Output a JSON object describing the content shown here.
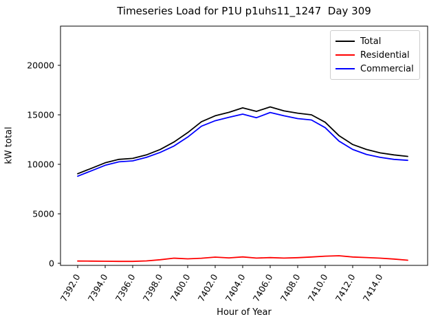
{
  "chart_data": {
    "type": "line",
    "title": "Timeseries Load for P1U p1uhs11_1247  Day 309",
    "xlabel": "Hour of Year",
    "ylabel": "kW total",
    "xlim": [
      7390.75,
      7417.45
    ],
    "ylim": [
      -210,
      23960
    ],
    "grid": false,
    "legend_position": "upper right",
    "x_ticks": [
      7392,
      7394,
      7396,
      7398,
      7400,
      7402,
      7404,
      7406,
      7408,
      7410,
      7412,
      7414
    ],
    "x_tick_labels": [
      "7392.0",
      "7394.0",
      "7396.0",
      "7398.0",
      "7400.0",
      "7402.0",
      "7404.0",
      "7406.0",
      "7408.0",
      "7410.0",
      "7412.0",
      "7414.0"
    ],
    "y_ticks": [
      0,
      5000,
      10000,
      15000,
      20000
    ],
    "y_tick_labels": [
      "0",
      "5000",
      "10000",
      "15000",
      "20000"
    ],
    "x": [
      7392,
      7393,
      7394,
      7395,
      7396,
      7397,
      7398,
      7399,
      7400,
      7401,
      7402,
      7403,
      7404,
      7405,
      7406,
      7407,
      7408,
      7409,
      7410,
      7411,
      7412,
      7413,
      7414,
      7415,
      7416
    ],
    "series": [
      {
        "name": "Total",
        "color": "#000000",
        "values": [
          9050,
          9600,
          10150,
          10500,
          10600,
          10950,
          11500,
          12250,
          13200,
          14300,
          14900,
          15250,
          15700,
          15350,
          15800,
          15400,
          15170,
          15000,
          14250,
          12900,
          12000,
          11500,
          11150,
          10950,
          10800
        ]
      },
      {
        "name": "Residential",
        "color": "#ff0000",
        "values": [
          230,
          220,
          210,
          195,
          195,
          240,
          360,
          520,
          450,
          510,
          620,
          545,
          645,
          525,
          575,
          525,
          565,
          635,
          720,
          760,
          640,
          580,
          520,
          430,
          310
        ]
      },
      {
        "name": "Commercial",
        "color": "#0000ff",
        "values": [
          8800,
          9350,
          9900,
          10250,
          10350,
          10700,
          11200,
          11850,
          12750,
          13850,
          14400,
          14750,
          15070,
          14710,
          15240,
          14900,
          14620,
          14480,
          13700,
          12350,
          11500,
          11000,
          10700,
          10500,
          10400
        ]
      }
    ]
  }
}
